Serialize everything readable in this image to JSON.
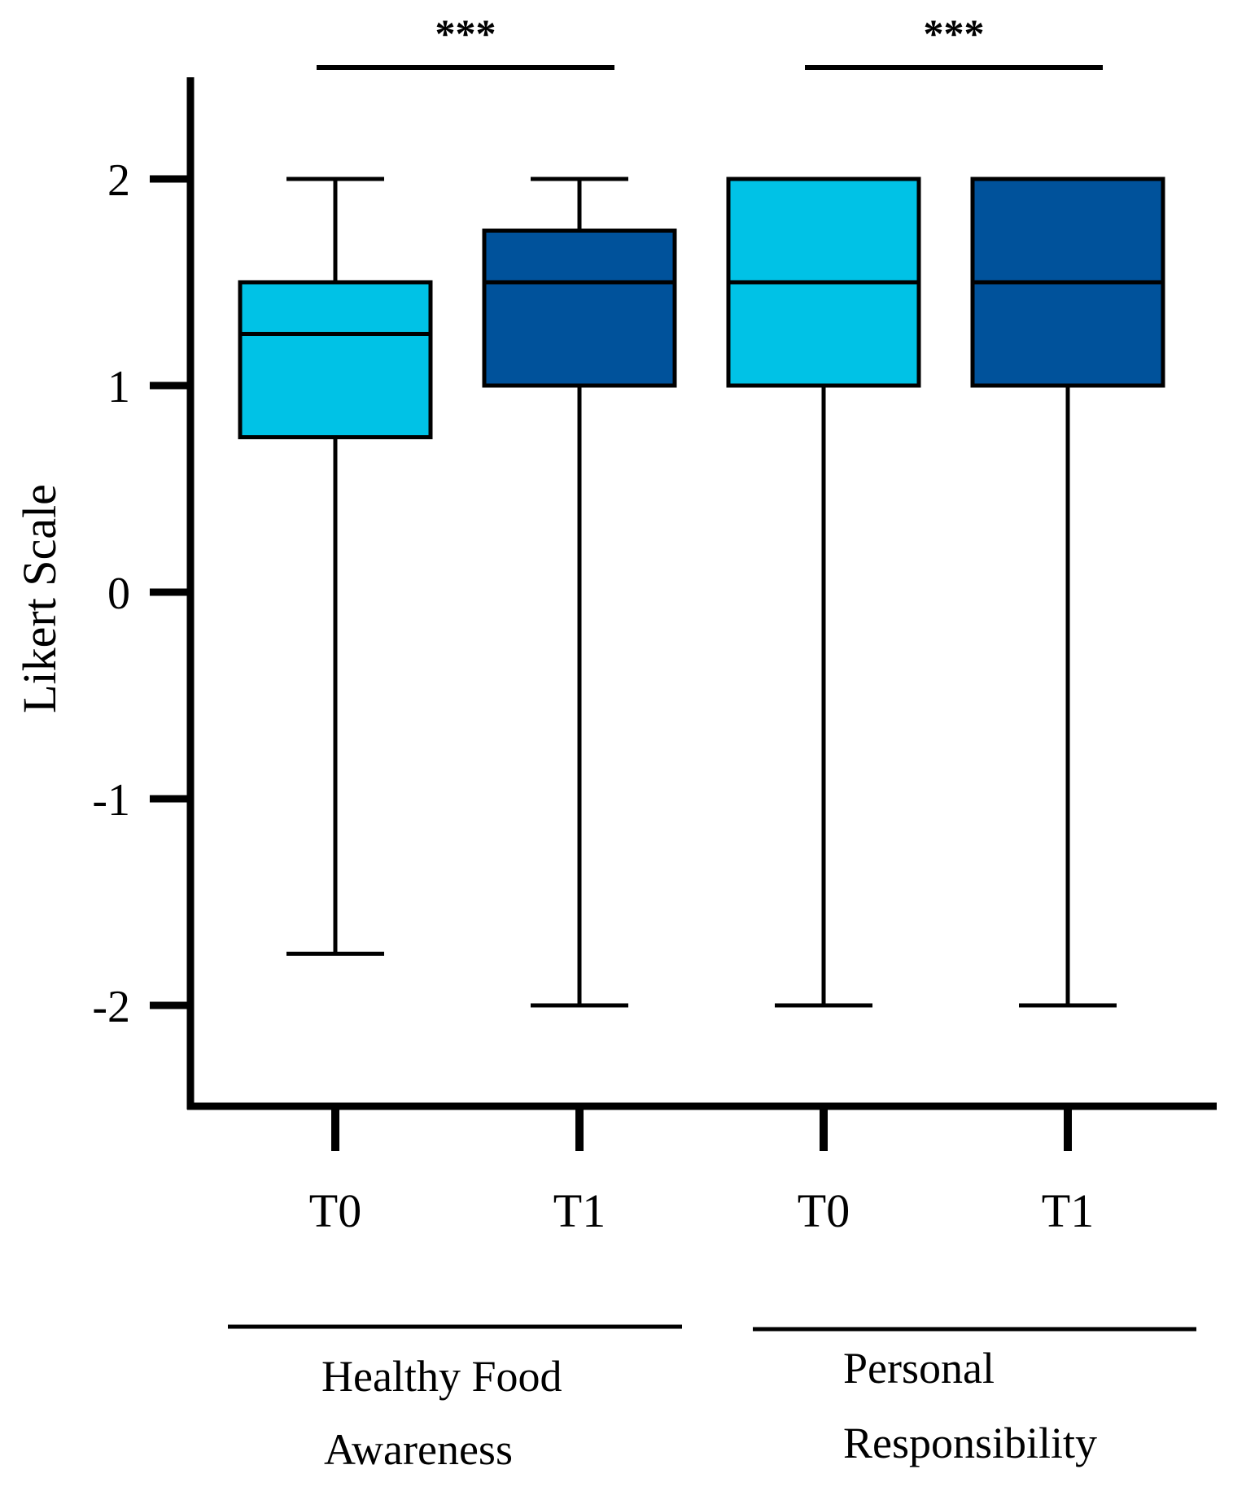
{
  "chart_data": {
    "type": "box",
    "ylabel": "Likert Scale",
    "ylim": [
      -2.5,
      2.5
    ],
    "yticks": [
      2,
      1,
      0,
      -1,
      -2
    ],
    "ytick_labels": [
      "2",
      "1",
      "0",
      "-1",
      "-2"
    ],
    "colors": {
      "T0": "#00c2e6",
      "T1": "#00529b"
    },
    "groups": [
      {
        "label_lines": [
          "Healthy Food",
          "Awareness"
        ],
        "significance": "***",
        "boxes": [
          {
            "label": "T0",
            "color": "#00c2e6",
            "min": -1.75,
            "q1": 0.75,
            "median": 1.25,
            "q3": 1.5,
            "max": 2
          },
          {
            "label": "T1",
            "color": "#00529b",
            "min": -2,
            "q1": 1,
            "median": 1.5,
            "q3": 1.75,
            "max": 2
          }
        ]
      },
      {
        "label_lines": [
          "Personal",
          "Responsibility"
        ],
        "significance": "***",
        "boxes": [
          {
            "label": "T0",
            "color": "#00c2e6",
            "min": -2,
            "q1": 1,
            "median": 1.5,
            "q3": 2,
            "max": 2
          },
          {
            "label": "T1",
            "color": "#00529b",
            "min": -2,
            "q1": 1,
            "median": 1.5,
            "q3": 2,
            "max": 2
          }
        ]
      }
    ]
  }
}
